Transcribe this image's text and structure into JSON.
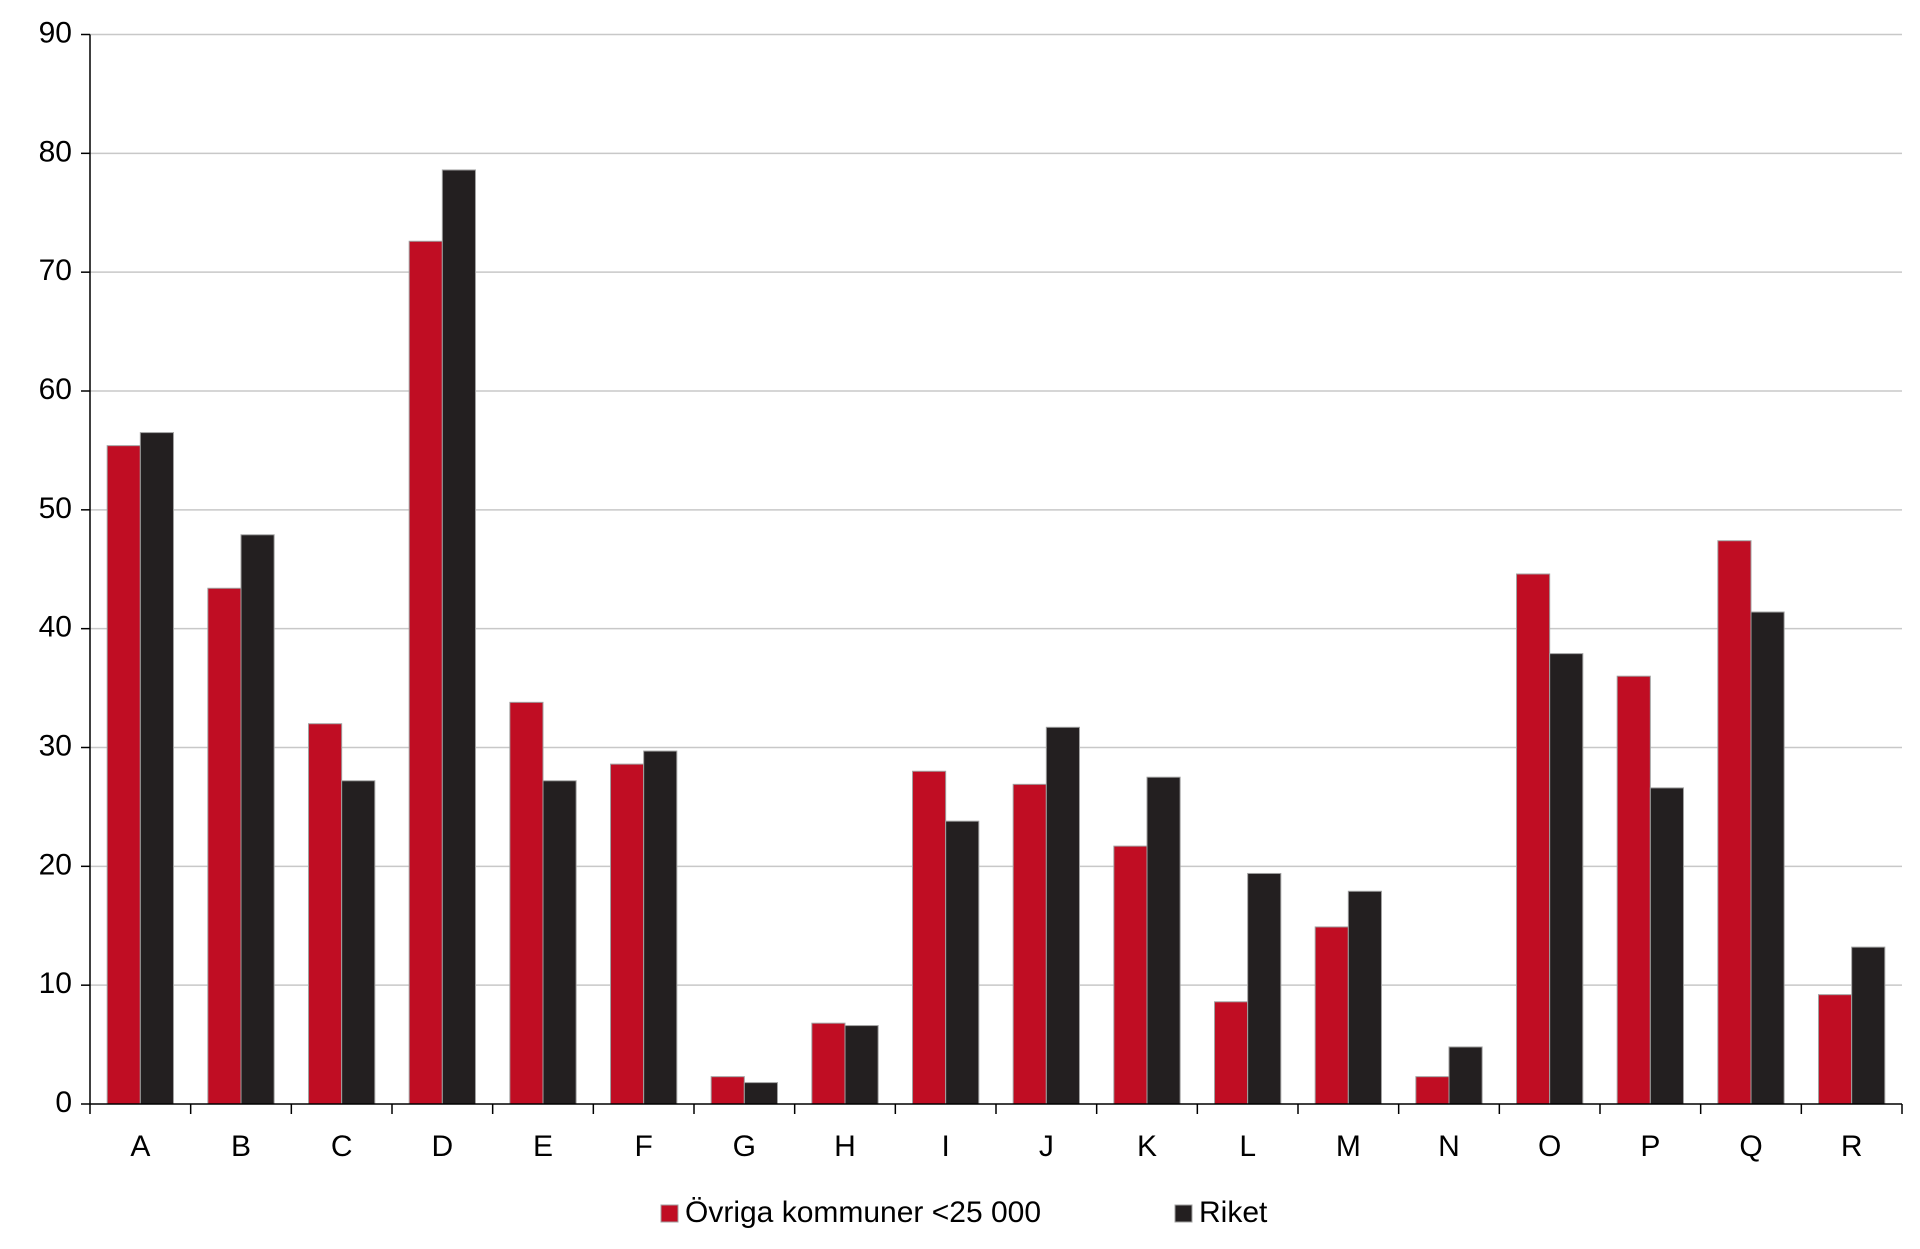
{
  "chart_data": {
    "type": "bar",
    "categories": [
      "A",
      "B",
      "C",
      "D",
      "E",
      "F",
      "G",
      "H",
      "I",
      "J",
      "K",
      "L",
      "M",
      "N",
      "O",
      "P",
      "Q",
      "R"
    ],
    "series": [
      {
        "name": "Övriga kommuner <25 000",
        "color": "#c00d23",
        "values": [
          55.4,
          43.4,
          32.0,
          72.6,
          33.8,
          28.6,
          2.3,
          6.8,
          28.0,
          26.9,
          21.7,
          8.6,
          14.9,
          2.3,
          44.6,
          36.0,
          47.4,
          9.2
        ]
      },
      {
        "name": "Riket",
        "color": "#231f20",
        "values": [
          56.5,
          47.9,
          27.2,
          78.6,
          27.2,
          29.7,
          1.8,
          6.6,
          23.8,
          31.7,
          27.5,
          19.4,
          17.9,
          4.8,
          37.9,
          26.6,
          41.4,
          13.2
        ]
      }
    ],
    "ylim": [
      0,
      90
    ],
    "yticks": [
      0,
      10,
      20,
      30,
      40,
      50,
      60,
      70,
      80,
      90
    ],
    "grid": true,
    "legend": "bottom"
  }
}
